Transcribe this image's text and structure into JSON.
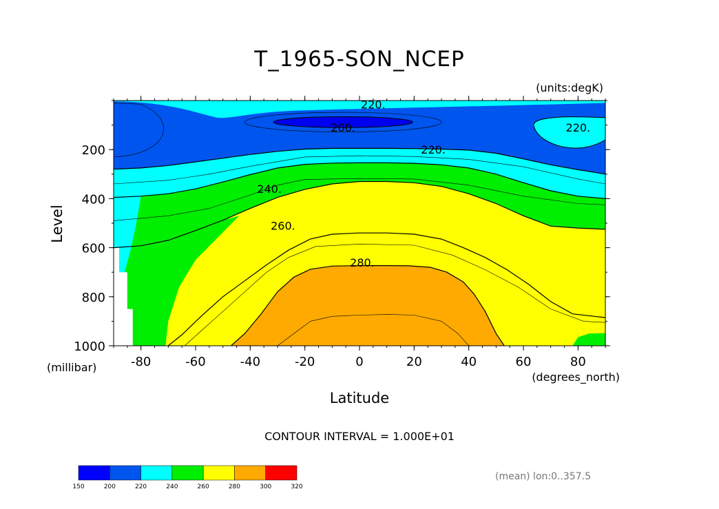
{
  "chart_data": {
    "type": "contour",
    "title": "T_1965-SON_NCEP",
    "units": "(units:degK)",
    "xlabel": "Latitude",
    "xunits": "(degrees_north)",
    "ylabel": "Level",
    "yunits": "(millibar)",
    "xlim": [
      -90,
      90
    ],
    "ylim": [
      1000,
      0
    ],
    "xticks": [
      "-80",
      "-60",
      "-40",
      "-20",
      "0",
      "20",
      "40",
      "60",
      "80"
    ],
    "xtick_values": [
      -80,
      -60,
      -40,
      -20,
      0,
      20,
      40,
      60,
      80
    ],
    "yticks": [
      "200",
      "400",
      "600",
      "800",
      "1000"
    ],
    "ytick_values": [
      200,
      400,
      600,
      800,
      1000
    ],
    "contour_labels": [
      {
        "text": "220.",
        "lat": 5,
        "lev": 15
      },
      {
        "text": "200.",
        "lat": -6,
        "lev": 110
      },
      {
        "text": "220.",
        "lat": 27,
        "lev": 200
      },
      {
        "text": "220.",
        "lat": 80,
        "lev": 110
      },
      {
        "text": "240.",
        "lat": -33,
        "lev": 360
      },
      {
        "text": "260.",
        "lat": -28,
        "lev": 510
      },
      {
        "text": "280.",
        "lat": 1,
        "lev": 660
      }
    ],
    "bands": [
      {
        "name": "200-220",
        "color": "#0055ee",
        "upper": [
          [
            -90,
            0
          ],
          [
            90,
            0
          ],
          [
            90,
            300
          ],
          [
            70,
            270
          ],
          [
            52,
            215
          ],
          [
            40,
            200
          ],
          [
            -10,
            195
          ],
          [
            -30,
            220
          ],
          [
            -50,
            250
          ],
          [
            -70,
            270
          ],
          [
            -90,
            275
          ]
        ],
        "lower": null
      },
      {
        "name": "220-240",
        "color": "#00ffff",
        "lower_levels": [
          275,
          270,
          250,
          220,
          195,
          195,
          200,
          215,
          270,
          300
        ],
        "upper_levels": [
          400,
          380,
          330,
          280,
          260,
          255,
          270,
          300,
          360,
          400
        ]
      },
      {
        "name": "240-260",
        "color": "#00ee00"
      },
      {
        "name": "260-280",
        "color": "#ffff00"
      },
      {
        "name": "280-300",
        "color": "#ffaa00"
      }
    ],
    "colorbar": {
      "levels": [
        "150",
        "200",
        "220",
        "240",
        "260",
        "280",
        "300",
        "320"
      ],
      "colors": [
        "#0000ff",
        "#0055ee",
        "#00ffff",
        "#00ee00",
        "#ffff00",
        "#ffaa00",
        "#ff0000"
      ]
    }
  },
  "labels": {
    "contour_interval": "CONTOUR INTERVAL = 1.000E+01",
    "footnote": "(mean) lon:0..357.5"
  }
}
